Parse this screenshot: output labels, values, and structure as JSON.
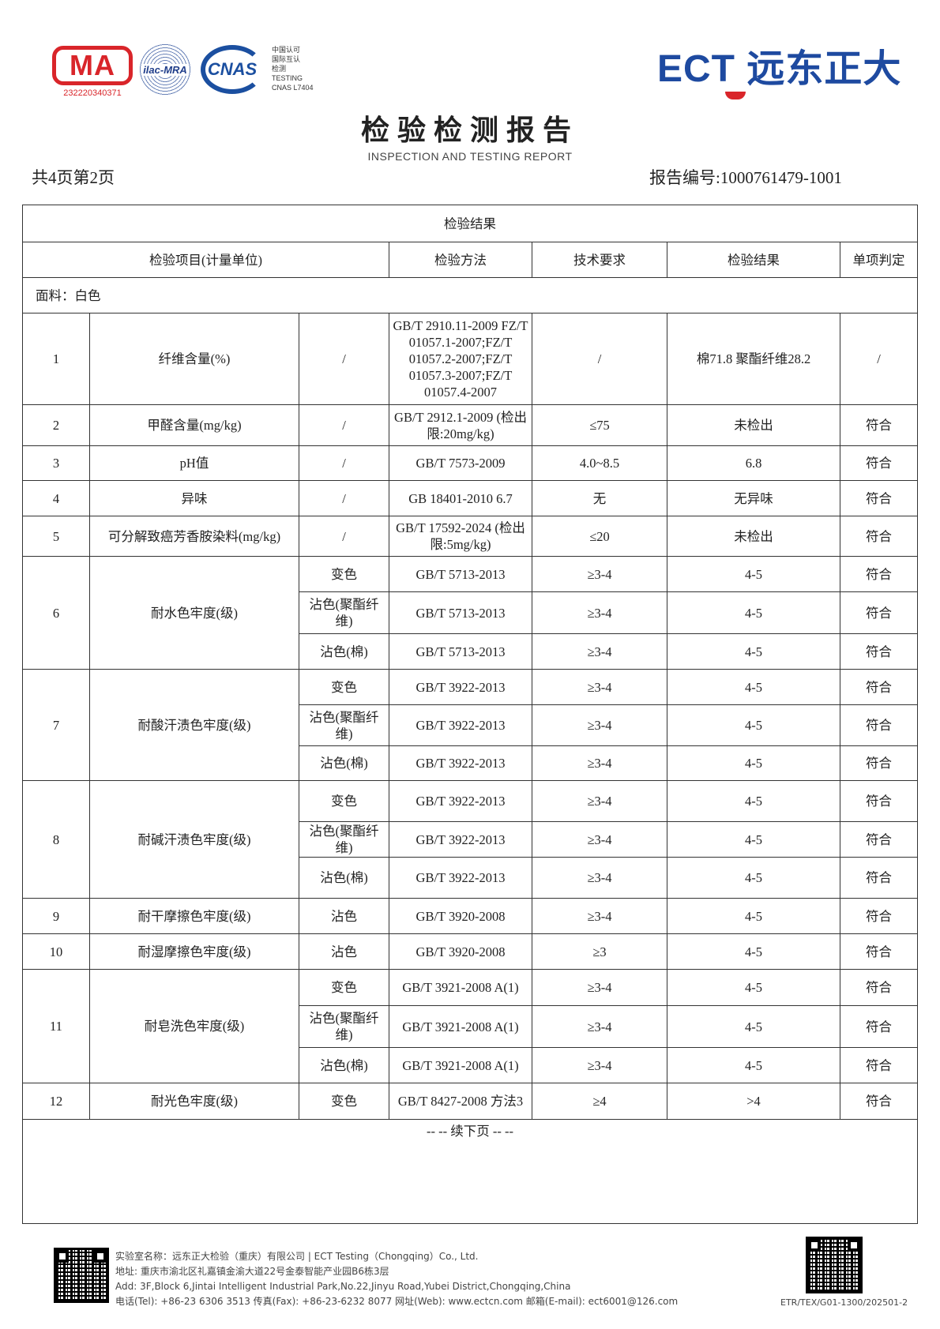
{
  "header": {
    "cma_logo": "MA",
    "cma_number": "232220340371",
    "ilac_logo": "ilac-MRA",
    "cnas_logo": "CNAS",
    "cnas_text": [
      "中国认可",
      "国际互认",
      "检测",
      "TESTING",
      "CNAS L7404"
    ],
    "brand_logo": "ECT 远东正大",
    "brand_color": "#1e4aa0",
    "accent_color": "#d9252a"
  },
  "title": "检验检测报告",
  "subtitle": "INSPECTION AND TESTING REPORT",
  "pages": "共4页第2页",
  "report_no": "报告编号:1000761479-1001",
  "table": {
    "caption": "检验结果",
    "headers": [
      "检验项目(计量单位)",
      "检验方法",
      "技术要求",
      "检验结果",
      "单项判定"
    ],
    "section": "面料：白色",
    "rows": [
      {
        "no": "1",
        "item": "纤维含量(%)",
        "sub": [
          "/"
        ],
        "method": [
          "GB/T 2910.11-2009 FZ/T 01057.1-2007;FZ/T 01057.2-2007;FZ/T 01057.3-2007;FZ/T 01057.4-2007"
        ],
        "req": [
          "/"
        ],
        "result": [
          "棉71.8 聚酯纤维28.2"
        ],
        "verdict": [
          "/"
        ]
      },
      {
        "no": "2",
        "item": "甲醛含量(mg/kg)",
        "sub": [
          "/"
        ],
        "method": [
          "GB/T 2912.1-2009 (检出限:20mg/kg)"
        ],
        "req": [
          "≤75"
        ],
        "result": [
          "未检出"
        ],
        "verdict": [
          "符合"
        ]
      },
      {
        "no": "3",
        "item": "pH值",
        "sub": [
          "/"
        ],
        "method": [
          "GB/T 7573-2009"
        ],
        "req": [
          "4.0~8.5"
        ],
        "result": [
          "6.8"
        ],
        "verdict": [
          "符合"
        ]
      },
      {
        "no": "4",
        "item": "异味",
        "sub": [
          "/"
        ],
        "method": [
          "GB 18401-2010 6.7"
        ],
        "req": [
          "无"
        ],
        "result": [
          "无异味"
        ],
        "verdict": [
          "符合"
        ]
      },
      {
        "no": "5",
        "item": "可分解致癌芳香胺染料(mg/kg)",
        "sub": [
          "/"
        ],
        "method": [
          "GB/T 17592-2024 (检出限:5mg/kg)"
        ],
        "req": [
          "≤20"
        ],
        "result": [
          "未检出"
        ],
        "verdict": [
          "符合"
        ]
      },
      {
        "no": "6",
        "item": "耐水色牢度(级)",
        "sub": [
          "变色",
          "沾色(聚酯纤维)",
          "沾色(棉)"
        ],
        "method": [
          "GB/T 5713-2013",
          "GB/T 5713-2013",
          "GB/T 5713-2013"
        ],
        "req": [
          "≥3-4",
          "≥3-4",
          "≥3-4"
        ],
        "result": [
          "4-5",
          "4-5",
          "4-5"
        ],
        "verdict": [
          "符合",
          "符合",
          "符合"
        ]
      },
      {
        "no": "7",
        "item": "耐酸汗渍色牢度(级)",
        "sub": [
          "变色",
          "沾色(聚酯纤维)",
          "沾色(棉)"
        ],
        "method": [
          "GB/T 3922-2013",
          "GB/T 3922-2013",
          "GB/T 3922-2013"
        ],
        "req": [
          "≥3-4",
          "≥3-4",
          "≥3-4"
        ],
        "result": [
          "4-5",
          "4-5",
          "4-5"
        ],
        "verdict": [
          "符合",
          "符合",
          "符合"
        ]
      },
      {
        "no": "8",
        "item": "耐碱汗渍色牢度(级)",
        "sub": [
          "变色",
          "沾色(聚酯纤维)",
          "沾色(棉)"
        ],
        "method": [
          "GB/T 3922-2013",
          "GB/T 3922-2013",
          "GB/T 3922-2013"
        ],
        "req": [
          "≥3-4",
          "≥3-4",
          "≥3-4"
        ],
        "result": [
          "4-5",
          "4-5",
          "4-5"
        ],
        "verdict": [
          "符合",
          "符合",
          "符合"
        ]
      },
      {
        "no": "9",
        "item": "耐干摩擦色牢度(级)",
        "sub": [
          "沾色"
        ],
        "method": [
          "GB/T 3920-2008"
        ],
        "req": [
          "≥3-4"
        ],
        "result": [
          "4-5"
        ],
        "verdict": [
          "符合"
        ]
      },
      {
        "no": "10",
        "item": "耐湿摩擦色牢度(级)",
        "sub": [
          "沾色"
        ],
        "method": [
          "GB/T 3920-2008"
        ],
        "req": [
          "≥3"
        ],
        "result": [
          "4-5"
        ],
        "verdict": [
          "符合"
        ]
      },
      {
        "no": "11",
        "item": "耐皂洗色牢度(级)",
        "sub": [
          "变色",
          "沾色(聚酯纤维)",
          "沾色(棉)"
        ],
        "method": [
          "GB/T 3921-2008 A(1)",
          "GB/T 3921-2008 A(1)",
          "GB/T 3921-2008 A(1)"
        ],
        "req": [
          "≥3-4",
          "≥3-4",
          "≥3-4"
        ],
        "result": [
          "4-5",
          "4-5",
          "4-5"
        ],
        "verdict": [
          "符合",
          "符合",
          "符合"
        ]
      },
      {
        "no": "12",
        "item": "耐光色牢度(级)",
        "sub": [
          "变色"
        ],
        "method": [
          "GB/T 8427-2008 方法3"
        ],
        "req": [
          "≥4"
        ],
        "result": [
          ">4"
        ],
        "verdict": [
          "符合"
        ]
      }
    ],
    "continued": "-- -- 续下页 -- --"
  },
  "footer": {
    "lines": [
      "实验室名称：远东正大检验（重庆）有限公司 | ECT Testing（Chongqing）Co., Ltd.",
      "地址: 重庆市渝北区礼嘉镇金渝大道22号金泰智能产业园B6栋3层",
      "Add: 3F,Block 6,Jintai Intelligent Industrial Park,No.22,Jinyu Road,Yubei District,Chongqing,China",
      "电话(Tel): +86-23 6306 3513 传真(Fax): +86-23-6232 8077 网址(Web): www.ectcn.com 邮箱(E-mail): ect6001@126.com"
    ],
    "doc_code": "ETR/TEX/G01-1300/202501-2"
  }
}
